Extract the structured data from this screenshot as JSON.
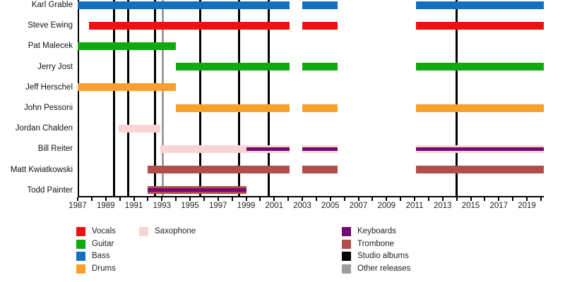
{
  "chart_data": {
    "type": "bar",
    "variant": "horizontal-timeline-gantt",
    "title": "",
    "x_axis": {
      "min": 1987,
      "max": 2020.2,
      "minor_tick_interval": 1,
      "label_interval": 2,
      "tick_labels": [
        "1987",
        "1989",
        "1991",
        "1993",
        "1995",
        "1997",
        "1999",
        "2001",
        "2003",
        "2005",
        "2007",
        "2009",
        "2011",
        "2013",
        "2015",
        "2017",
        "2019"
      ]
    },
    "grid": "off",
    "colors": {
      "Vocals": "#ee1111",
      "Guitar": "#12a812",
      "Bass": "#1270c2",
      "Drums": "#f7a12b",
      "Saxophone": "#f9d4d4",
      "Keyboards": "#730a73",
      "Trombone": "#b34d4d",
      "Studio albums": "#000000",
      "Other releases": "#9c9c9c"
    },
    "members": [
      {
        "name": "Karl Grable",
        "segments": [
          {
            "instrument": "Bass",
            "start": 1987,
            "end": 2002.1
          },
          {
            "instrument": "Bass",
            "start": 2003,
            "end": 2005.5
          },
          {
            "instrument": "Bass",
            "start": 2011.1,
            "end": 2020.2
          }
        ]
      },
      {
        "name": "Steve Ewing",
        "segments": [
          {
            "instrument": "Vocals",
            "start": 1987.8,
            "end": 2002.1
          },
          {
            "instrument": "Vocals",
            "start": 2003,
            "end": 2005.5
          },
          {
            "instrument": "Vocals",
            "start": 2011.1,
            "end": 2020.2
          }
        ]
      },
      {
        "name": "Pat Malecek",
        "segments": [
          {
            "instrument": "Guitar",
            "start": 1987,
            "end": 1994
          }
        ]
      },
      {
        "name": "Jerry Jost",
        "segments": [
          {
            "instrument": "Guitar",
            "start": 1994,
            "end": 2002.1
          },
          {
            "instrument": "Guitar",
            "start": 2003,
            "end": 2005.5
          },
          {
            "instrument": "Guitar",
            "start": 2011.1,
            "end": 2020.2
          }
        ]
      },
      {
        "name": "Jeff Herschel",
        "segments": [
          {
            "instrument": "Drums",
            "start": 1987,
            "end": 1994
          }
        ]
      },
      {
        "name": "John Pessoni",
        "segments": [
          {
            "instrument": "Drums",
            "start": 1994,
            "end": 2002.1
          },
          {
            "instrument": "Drums",
            "start": 2003,
            "end": 2005.5
          },
          {
            "instrument": "Drums",
            "start": 2011.1,
            "end": 2020.2
          }
        ]
      },
      {
        "name": "Jordan Chalden",
        "segments": [
          {
            "instrument": "Saxophone",
            "start": 1989.9,
            "end": 1992.9
          }
        ]
      },
      {
        "name": "Bill Reiter",
        "segments": [
          {
            "instrument": "Saxophone",
            "start": 1992.9,
            "end": 2002.1,
            "overlay": {
              "instrument": "Keyboards",
              "start": 1999,
              "end": 2002.1
            }
          },
          {
            "instrument": "Saxophone",
            "start": 2003,
            "end": 2005.5,
            "overlay": {
              "instrument": "Keyboards",
              "start": 2003,
              "end": 2005.5
            }
          },
          {
            "instrument": "Saxophone",
            "start": 2011.1,
            "end": 2020.2,
            "overlay": {
              "instrument": "Keyboards",
              "start": 2011.1,
              "end": 2020.2
            }
          }
        ]
      },
      {
        "name": "Matt Kwiatkowski",
        "segments": [
          {
            "instrument": "Trombone",
            "start": 1992,
            "end": 2002.1
          },
          {
            "instrument": "Trombone",
            "start": 2003,
            "end": 2005.5
          },
          {
            "instrument": "Trombone",
            "start": 2011.1,
            "end": 2020.2
          }
        ]
      },
      {
        "name": "Todd Painter",
        "segments": [
          {
            "instrument": "Trombone",
            "start": 1992,
            "end": 1999,
            "overlay": {
              "instrument": "Keyboards",
              "start": 1992,
              "end": 1999
            }
          }
        ]
      }
    ],
    "events": {
      "studio_albums": {
        "label": "Studio albums",
        "years": [
          1989.6,
          1990.6,
          1992.5,
          1995.75,
          1998.5,
          2000.6,
          2014.0
        ]
      },
      "other_releases": {
        "label": "Other releases",
        "years": [
          1993.05
        ]
      }
    },
    "legend": {
      "position": "bottom",
      "columns": [
        [
          "Vocals",
          "Guitar",
          "Bass",
          "Drums"
        ],
        [
          "Saxophone"
        ],
        [
          "Keyboards",
          "Trombone",
          "Studio albums",
          "Other releases"
        ]
      ]
    }
  }
}
